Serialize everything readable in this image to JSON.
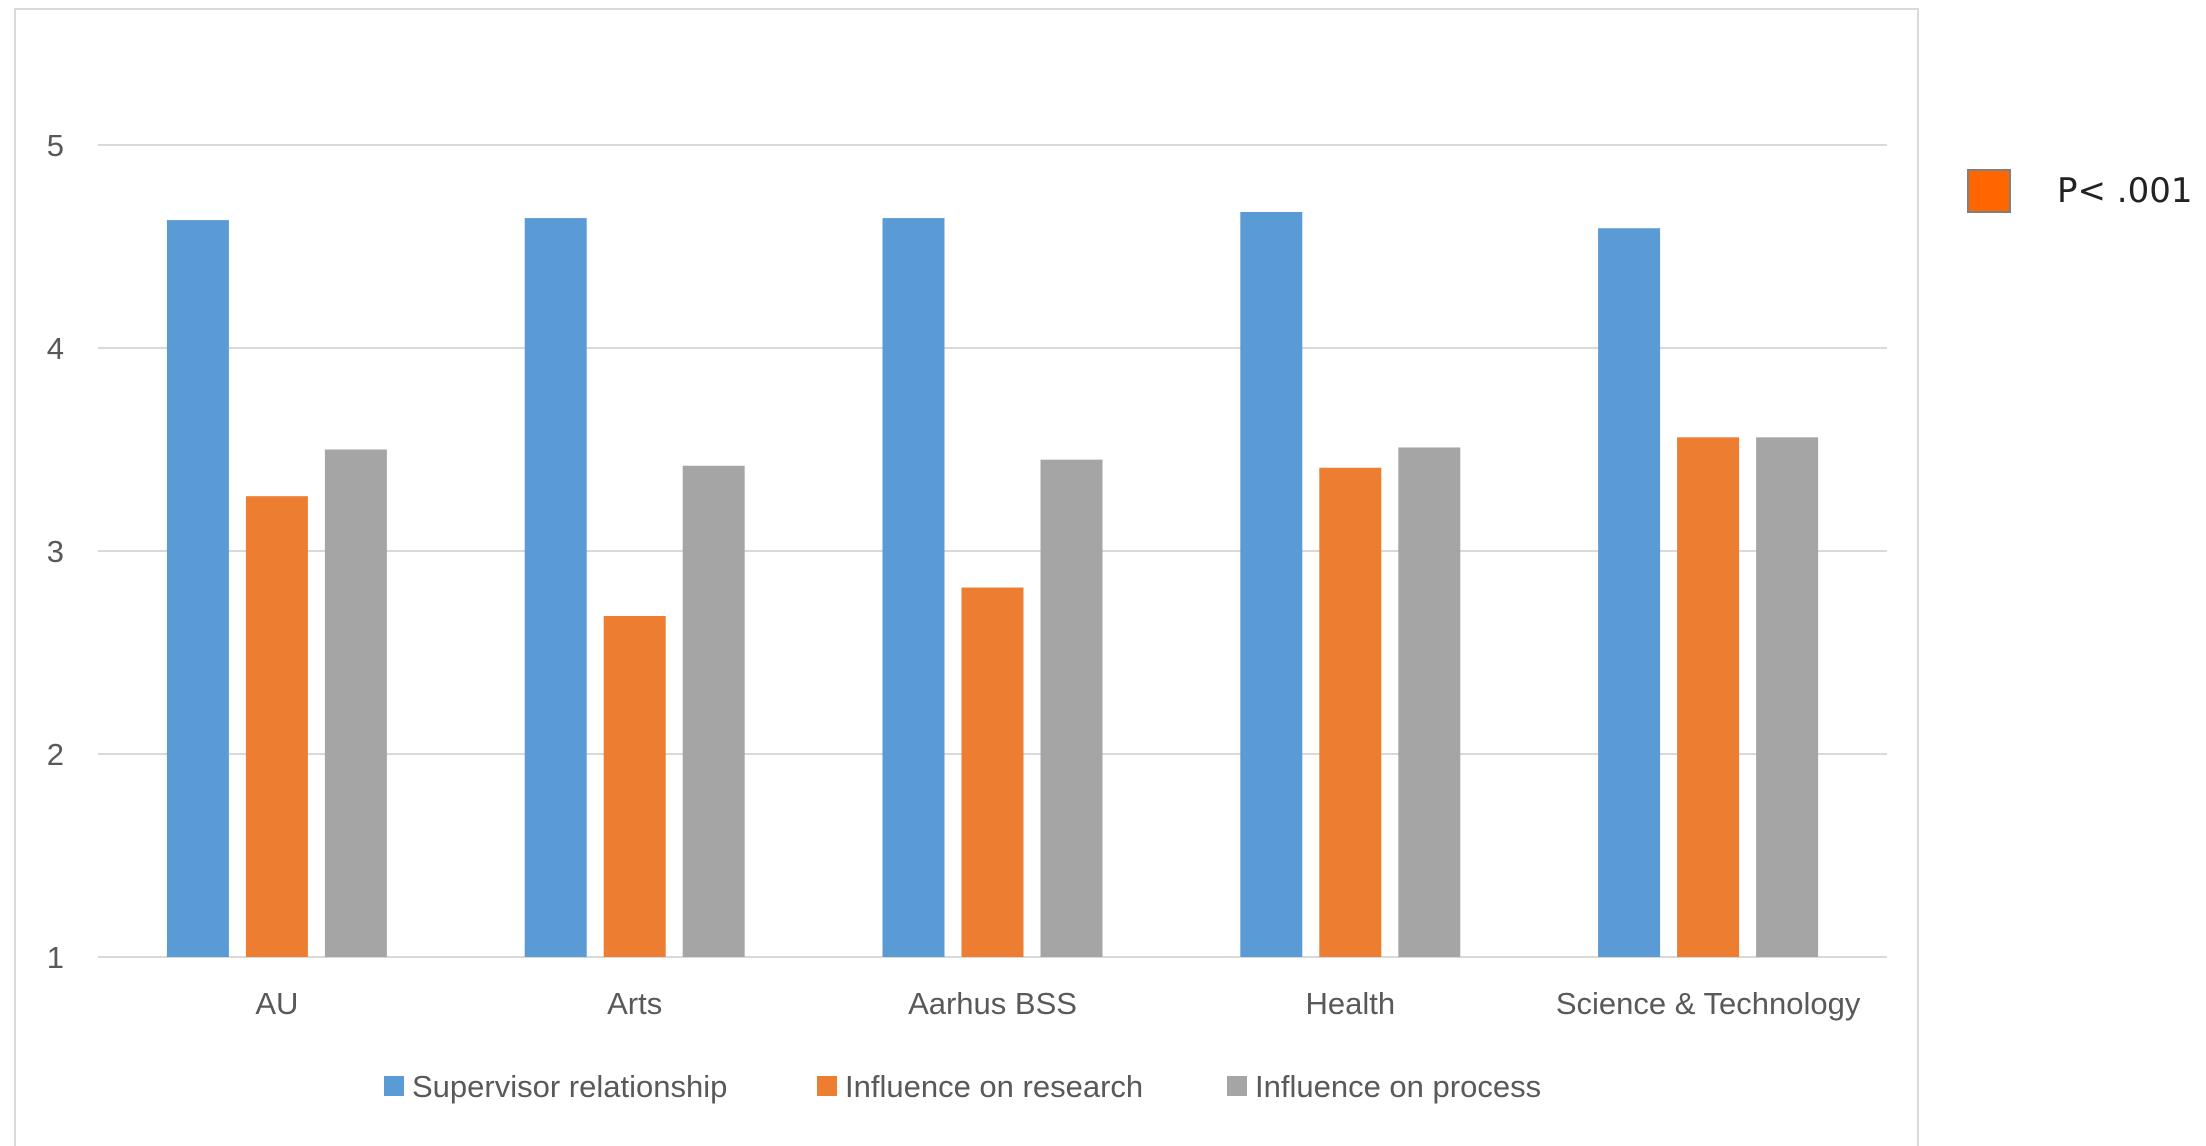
{
  "chart_data": {
    "type": "bar",
    "categories": [
      "AU",
      "Arts",
      "Aarhus BSS",
      "Health",
      "Science & Technology"
    ],
    "series": [
      {
        "name": "Supervisor relationship",
        "color": "#5b9bd5",
        "values": [
          4.63,
          4.64,
          4.64,
          4.67,
          4.59
        ]
      },
      {
        "name": "Influence on research",
        "color": "#ed7d31",
        "values": [
          3.27,
          2.68,
          2.82,
          3.41,
          3.56
        ]
      },
      {
        "name": "Influence on process",
        "color": "#a5a5a5",
        "values": [
          3.5,
          3.42,
          3.45,
          3.51,
          3.56
        ]
      }
    ],
    "ylim": [
      1,
      5
    ],
    "yticks": [
      1,
      2,
      3,
      4,
      5
    ],
    "grid": true,
    "legend_position": "bottom"
  },
  "significance_legend": {
    "label": "P< .001",
    "color": "#ff6600"
  }
}
